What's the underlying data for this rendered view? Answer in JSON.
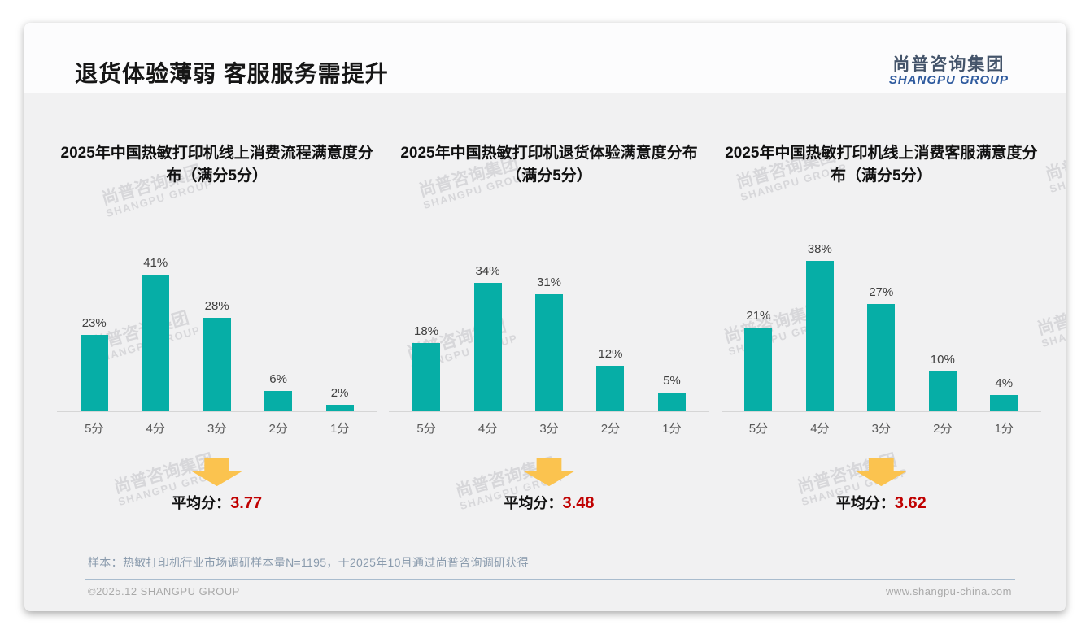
{
  "page": {
    "title": "退货体验薄弱 客服服务需提升",
    "logo": {
      "cn": "尚普咨询集团",
      "en": "SHANGPU GROUP"
    },
    "watermark": {
      "line1": "尚普咨询集团",
      "line2": "SHANGPU GROUP"
    },
    "sample_note": "样本：热敏打印机行业市场调研样本量N=1195，于2025年10月通过尚普咨询调研获得",
    "footer": {
      "left": "©2025.12 SHANGPU GROUP",
      "right": "www.shangpu-china.com"
    }
  },
  "colors": {
    "bar": "#06AEA6",
    "arrow": "#FBC34F",
    "average_red": "#C00000"
  },
  "chart_data": [
    {
      "type": "bar",
      "title": "2025年中国热敏打印机线上消费流程满意度分布（满分5分）",
      "categories": [
        "5分",
        "4分",
        "3分",
        "2分",
        "1分"
      ],
      "values": [
        23,
        41,
        28,
        6,
        2
      ],
      "value_labels": [
        "23%",
        "41%",
        "28%",
        "6%",
        "2%"
      ],
      "xlabel": "",
      "ylabel": "",
      "ylim": [
        0,
        50
      ],
      "grid": false,
      "legend": false,
      "average_label": "平均分：",
      "average": "3.77"
    },
    {
      "type": "bar",
      "title": "2025年中国热敏打印机退货体验满意度分布（满分5分）",
      "categories": [
        "5分",
        "4分",
        "3分",
        "2分",
        "1分"
      ],
      "values": [
        18,
        34,
        31,
        12,
        5
      ],
      "value_labels": [
        "18%",
        "34%",
        "31%",
        "12%",
        "5%"
      ],
      "xlabel": "",
      "ylabel": "",
      "ylim": [
        0,
        44
      ],
      "grid": false,
      "legend": false,
      "average_label": "平均分：",
      "average": "3.48"
    },
    {
      "type": "bar",
      "title": "2025年中国热敏打印机线上消费客服满意度分布（满分5分）",
      "categories": [
        "5分",
        "4分",
        "3分",
        "2分",
        "1分"
      ],
      "values": [
        21,
        38,
        27,
        10,
        4
      ],
      "value_labels": [
        "21%",
        "38%",
        "27%",
        "10%",
        "4%"
      ],
      "xlabel": "",
      "ylabel": "",
      "ylim": [
        0,
        42
      ],
      "grid": false,
      "legend": false,
      "average_label": "平均分：",
      "average": "3.62"
    }
  ]
}
